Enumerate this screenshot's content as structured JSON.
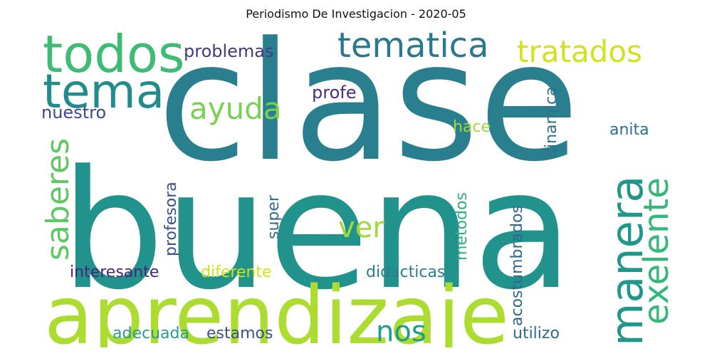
{
  "title": "Periodismo De Investigacion - 2020-05",
  "words": [
    {
      "text": "clase",
      "color": "#2a7f8e",
      "size": 230,
      "orientation": "horizontal"
    },
    {
      "text": "buena",
      "color": "#21928c",
      "size": 230,
      "orientation": "horizontal"
    },
    {
      "text": "aprendizaje",
      "color": "#addc30",
      "size": 112,
      "orientation": "horizontal"
    },
    {
      "text": "todos",
      "color": "#3dbc74",
      "size": 72,
      "orientation": "horizontal"
    },
    {
      "text": "tema",
      "color": "#228c8d",
      "size": 66,
      "orientation": "horizontal"
    },
    {
      "text": "tematica",
      "color": "#2a788e",
      "size": 48,
      "orientation": "horizontal"
    },
    {
      "text": "tratados",
      "color": "#d2e21b",
      "size": 42,
      "orientation": "horizontal"
    },
    {
      "text": "ayuda",
      "color": "#7ad151",
      "size": 42,
      "orientation": "horizontal"
    },
    {
      "text": "manera",
      "color": "#1f988b",
      "size": 62,
      "orientation": "vertical"
    },
    {
      "text": "exelente",
      "color": "#35b779",
      "size": 48,
      "orientation": "vertical"
    },
    {
      "text": "saberes",
      "color": "#5ec962",
      "size": 44,
      "orientation": "vertical"
    },
    {
      "text": "ver",
      "color": "#a0da39",
      "size": 40,
      "orientation": "horizontal"
    },
    {
      "text": "nos",
      "color": "#1f9e89",
      "size": 40,
      "orientation": "horizontal"
    },
    {
      "text": "problemas",
      "color": "#443983",
      "size": 24,
      "orientation": "horizontal"
    },
    {
      "text": "profe",
      "color": "#472d7b",
      "size": 24,
      "orientation": "horizontal"
    },
    {
      "text": "nuestro",
      "color": "#3e4989",
      "size": 24,
      "orientation": "horizontal"
    },
    {
      "text": "hace",
      "color": "#9fda3a",
      "size": 22,
      "orientation": "horizontal"
    },
    {
      "text": "anita",
      "color": "#2e6e8e",
      "size": 22,
      "orientation": "horizontal"
    },
    {
      "text": "dinamica",
      "color": "#2c728e",
      "size": 22,
      "orientation": "vertical"
    },
    {
      "text": "profesora",
      "color": "#3b528b",
      "size": 22,
      "orientation": "vertical"
    },
    {
      "text": "super",
      "color": "#2f6c8e",
      "size": 22,
      "orientation": "vertical"
    },
    {
      "text": "metodos",
      "color": "#2db27d",
      "size": 22,
      "orientation": "vertical"
    },
    {
      "text": "acostumbrados",
      "color": "#31668e",
      "size": 22,
      "orientation": "vertical"
    },
    {
      "text": "interesante",
      "color": "#482576",
      "size": 22,
      "orientation": "horizontal"
    },
    {
      "text": "diferente",
      "color": "#d2e21b",
      "size": 22,
      "orientation": "horizontal"
    },
    {
      "text": "didacticas",
      "color": "#277f8e",
      "size": 22,
      "orientation": "horizontal"
    },
    {
      "text": "adecuada",
      "color": "#2a9d8a",
      "size": 22,
      "orientation": "horizontal"
    },
    {
      "text": "estamos",
      "color": "#3b518b",
      "size": 22,
      "orientation": "horizontal"
    },
    {
      "text": "utilizo",
      "color": "#306a8e",
      "size": 22,
      "orientation": "horizontal"
    }
  ]
}
